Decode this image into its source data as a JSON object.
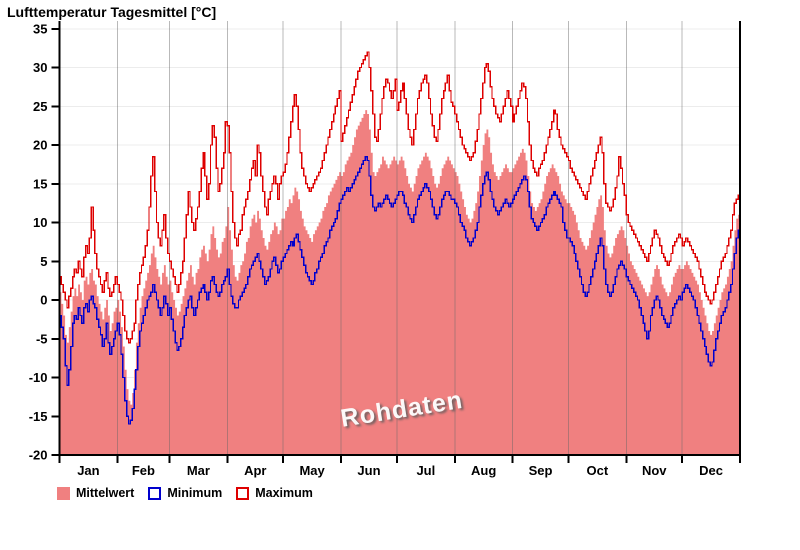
{
  "title": "Lufttemperatur Tagesmittel [°C]",
  "watermark": "Rohdaten",
  "colors": {
    "mean_fill": "#F08080",
    "min_line": "#0000CD",
    "max_line": "#DE0000",
    "h_grid": "#ECECEC",
    "month_grid_rgba": "rgba(100,100,100,0.45)",
    "axis": "#000000",
    "label": "#000000"
  },
  "legend": [
    {
      "label": "Mittelwert",
      "swatch": "filled",
      "color": "#F08080"
    },
    {
      "label": "Minimum",
      "swatch": "outline",
      "color": "#0000CD"
    },
    {
      "label": "Maximum",
      "swatch": "outline",
      "color": "#DE0000"
    }
  ],
  "chart_data": {
    "type": "area",
    "title": "Lufttemperatur Tagesmittel [°C]",
    "xlabel": "",
    "ylabel": "",
    "ylim": [
      -20,
      36
    ],
    "y_ticks": [
      35,
      30,
      25,
      20,
      15,
      10,
      5,
      0,
      -5,
      -10,
      -15,
      -20
    ],
    "grid": "on",
    "legend_position": "bottom",
    "months": [
      "Jan",
      "Feb",
      "Mar",
      "Apr",
      "May",
      "Jun",
      "Jul",
      "Aug",
      "Sep",
      "Oct",
      "Nov",
      "Dec"
    ],
    "days_per_month": [
      31,
      28,
      31,
      30,
      31,
      30,
      31,
      31,
      30,
      31,
      30,
      31
    ],
    "series": [
      {
        "name": "Mittelwert",
        "render": "area",
        "color": "#F08080",
        "values": [
          1,
          -0.5,
          -2,
          -4.5,
          -5.5,
          -3.5,
          -1.5,
          0.5,
          1.5,
          0.5,
          2,
          1,
          0,
          2.5,
          3,
          2,
          3.5,
          4,
          2.5,
          2,
          0.5,
          -0.5,
          -1.5,
          -2.5,
          -1,
          0,
          -2,
          -4,
          -3,
          -1.5,
          -1,
          0,
          -1.5,
          -3.5,
          -6,
          -9,
          -11.5,
          -13,
          -13.5,
          -12,
          -9,
          -5.5,
          -3,
          -1,
          0.5,
          1.5,
          2.5,
          3.5,
          4.5,
          6,
          7,
          5.5,
          4,
          3,
          2,
          3.5,
          4.5,
          3,
          2,
          2.5,
          1,
          0,
          -1,
          -2,
          -1.5,
          -0.5,
          0.5,
          1.5,
          2.5,
          3.5,
          4.5,
          3,
          2,
          3.5,
          4,
          5.5,
          6.5,
          7,
          6,
          5,
          6.5,
          8.5,
          9.5,
          8,
          6.5,
          5.5,
          6,
          7.5,
          8,
          9.5,
          12,
          9,
          6.5,
          4.5,
          3,
          2.5,
          3.5,
          4.5,
          5,
          6,
          7.5,
          8,
          9.5,
          10.5,
          11,
          10,
          11.5,
          10.5,
          9,
          8,
          7,
          6.5,
          7.5,
          8.5,
          9,
          10,
          9.5,
          8.5,
          9,
          10.5,
          10.5,
          11.5,
          12,
          13,
          12.5,
          13.5,
          14.5,
          14,
          13,
          11.5,
          10.5,
          9.5,
          9,
          8.5,
          8,
          7.5,
          8.5,
          9,
          9.5,
          10,
          10.5,
          11.5,
          12,
          12.5,
          13.5,
          14,
          14.5,
          15,
          15.5,
          16,
          16.5,
          16,
          16.5,
          17.5,
          18,
          18.5,
          19,
          20,
          21,
          22,
          22.5,
          23,
          23.5,
          24,
          24.5,
          24,
          22,
          19,
          16.5,
          16,
          16.5,
          17,
          17.5,
          18.5,
          18,
          17.5,
          17,
          17.5,
          18,
          18.5,
          18,
          17.5,
          18,
          18.5,
          18,
          17,
          16,
          15,
          14.5,
          14,
          15,
          16,
          17,
          17.5,
          18,
          18.5,
          19,
          18.5,
          18,
          17,
          16,
          15,
          14.5,
          15,
          16,
          17,
          17.5,
          18,
          18.5,
          18,
          17.5,
          17,
          16.5,
          16,
          15,
          14,
          13,
          12,
          11,
          10.5,
          10,
          10.5,
          11.5,
          12.5,
          14,
          16,
          18,
          20,
          21.5,
          22,
          21,
          19,
          17.5,
          16.5,
          16,
          15.5,
          16,
          16.5,
          17,
          17.5,
          17,
          16.5,
          16.5,
          17,
          17.5,
          18,
          18.5,
          19,
          19.5,
          19,
          18,
          16,
          14,
          12.5,
          12,
          11.5,
          12,
          12.5,
          13,
          14,
          15,
          16,
          16.5,
          17,
          17.5,
          17,
          16.5,
          16,
          15,
          14,
          13.5,
          13,
          12.5,
          12.5,
          12,
          11.5,
          11,
          10,
          9,
          8,
          7.5,
          7,
          6.5,
          7,
          8,
          9,
          10,
          11,
          12,
          13,
          13.5,
          12,
          9,
          7,
          6,
          5.5,
          6,
          7,
          8,
          8.5,
          9,
          9.5,
          9,
          8,
          7,
          6,
          5,
          4.5,
          4,
          3.5,
          3,
          2.5,
          2,
          1.5,
          1,
          0.5,
          1,
          2,
          3,
          4,
          4.5,
          4,
          3,
          2,
          1.5,
          1,
          0.5,
          1,
          2,
          3,
          3.5,
          4,
          4.5,
          4,
          4,
          4.5,
          5,
          4.5,
          4,
          3.5,
          3,
          2.5,
          2,
          1,
          0,
          -1,
          -2,
          -3,
          -4,
          -4.5,
          -4,
          -3,
          -2,
          -1,
          0,
          1,
          1.5,
          2,
          3,
          4,
          5,
          7,
          9,
          10.5,
          11
        ]
      },
      {
        "name": "Minimum",
        "render": "step-line",
        "color": "#0000CD",
        "values": [
          -2,
          -3.5,
          -5,
          -8.5,
          -11,
          -9,
          -6,
          -3,
          -2,
          -2.5,
          -1,
          -2,
          -3,
          -1,
          -0.5,
          -1.5,
          0,
          0.5,
          -0.5,
          -1,
          -2.5,
          -3.5,
          -4.5,
          -6,
          -5,
          -3,
          -5.5,
          -7,
          -6,
          -5,
          -4,
          -3,
          -4.5,
          -7,
          -10,
          -13,
          -15,
          -16,
          -15.5,
          -14,
          -11.5,
          -9,
          -6,
          -4,
          -3,
          -2,
          -1,
          0,
          0.5,
          1,
          2,
          1,
          0,
          -1,
          -2,
          -1,
          0.5,
          -0.5,
          -2,
          -1,
          -2.5,
          -4,
          -5.5,
          -6.5,
          -6,
          -5,
          -3.5,
          -2,
          -1,
          0,
          0.5,
          -1,
          -2,
          -1,
          0,
          1,
          1.5,
          2,
          1,
          0,
          1,
          2.5,
          3,
          2,
          1,
          0.5,
          1,
          2,
          2.5,
          3,
          4,
          2,
          0.5,
          -0.5,
          -1,
          -1,
          0,
          0.5,
          1,
          1.5,
          2,
          3,
          4,
          4.5,
          5,
          5.5,
          6,
          5,
          4,
          3,
          2,
          2.5,
          3,
          4,
          5,
          5.5,
          4.5,
          3.5,
          4,
          5,
          5.5,
          6,
          6.5,
          7,
          7.5,
          7,
          8,
          8.5,
          7.5,
          6.5,
          5.5,
          4.5,
          3.5,
          3,
          2.5,
          2,
          2.5,
          3.5,
          4,
          5,
          5.5,
          6,
          7,
          7.5,
          8,
          9,
          9.5,
          10,
          10.5,
          11.5,
          12.5,
          13,
          13.5,
          14,
          14.5,
          14,
          14.5,
          15,
          15.5,
          16,
          16.5,
          17,
          17.5,
          18,
          18.5,
          18,
          16,
          13.5,
          12,
          11.5,
          12,
          12.5,
          12,
          12.5,
          13,
          13.5,
          13,
          12.5,
          12,
          12.5,
          13,
          13.5,
          14,
          14,
          13.5,
          12.5,
          12,
          11,
          10.5,
          10,
          11,
          12,
          13,
          13.5,
          14,
          14.5,
          15,
          14.5,
          14,
          13,
          12,
          11,
          10.5,
          11,
          12,
          13,
          13.5,
          14,
          14,
          13.5,
          13,
          13,
          12.5,
          12,
          11,
          10,
          9.5,
          9,
          8,
          7.5,
          7,
          7.5,
          8,
          9,
          10,
          12,
          13.5,
          15,
          16,
          16.5,
          15.5,
          14,
          13,
          12,
          11.5,
          11,
          11.5,
          12,
          12.5,
          13,
          12.5,
          12,
          12.5,
          13,
          13.5,
          14,
          14.5,
          15,
          15.5,
          16,
          15.5,
          14,
          12,
          10.5,
          10,
          9.5,
          9,
          9.5,
          10,
          10.5,
          11,
          12,
          12.5,
          13,
          13.5,
          14,
          13.5,
          13,
          12.5,
          12,
          10,
          9,
          8,
          8,
          7.5,
          7,
          6,
          5,
          4,
          3,
          2,
          1,
          0.5,
          1,
          2,
          3,
          4,
          5,
          6,
          7,
          8,
          7,
          4,
          2,
          1,
          0.5,
          1,
          2,
          3,
          4,
          4.5,
          5,
          4.5,
          4,
          3,
          2.5,
          2,
          1.5,
          1,
          0.5,
          0,
          -1,
          -2,
          -3,
          -4,
          -5,
          -4,
          -2,
          -1,
          0,
          0.5,
          0,
          -1,
          -2,
          -2.5,
          -3,
          -3.5,
          -3,
          -2,
          -1,
          -0.5,
          0,
          0.5,
          0,
          1,
          1.5,
          2,
          1.5,
          1,
          0.5,
          0,
          -1,
          -2,
          -3,
          -4,
          -5,
          -6,
          -7,
          -8,
          -8.5,
          -8,
          -6.5,
          -5,
          -4,
          -3,
          -2,
          -1.5,
          -1,
          0,
          1,
          2,
          4,
          6,
          8,
          9
        ]
      },
      {
        "name": "Maximum",
        "render": "step-line",
        "color": "#DE0000",
        "values": [
          3,
          2,
          1,
          0,
          -1,
          0.5,
          1.5,
          3,
          4,
          3.5,
          5,
          4,
          3,
          5.5,
          7,
          6,
          8,
          12,
          9,
          6,
          4,
          3,
          2,
          1,
          2.5,
          3.5,
          1.5,
          0.5,
          1,
          2,
          3,
          2,
          1,
          0,
          -2,
          -4,
          -5,
          -5.5,
          -5,
          -4,
          -3,
          0,
          2,
          3.5,
          4.5,
          5.5,
          7,
          9,
          12,
          16,
          18.5,
          14,
          10,
          8,
          7,
          9,
          11,
          8,
          6,
          5,
          4,
          3,
          2,
          1,
          2,
          3.5,
          5,
          8,
          11,
          14,
          12,
          10,
          9,
          10.5,
          12,
          14,
          17,
          19,
          16,
          13,
          15,
          20,
          22.5,
          21,
          17,
          14,
          15,
          17,
          19,
          23,
          22.5,
          19,
          14,
          10,
          8,
          7,
          8.5,
          9,
          11,
          12,
          13,
          14,
          15.5,
          17,
          18,
          16,
          20,
          19,
          16,
          14,
          12,
          11,
          13,
          14,
          15,
          16,
          15,
          13,
          15,
          16,
          16.5,
          17.5,
          19,
          21,
          23,
          25,
          26.5,
          25,
          22,
          19,
          17,
          16,
          15,
          14.5,
          14,
          14.5,
          15,
          15.5,
          16,
          16.5,
          17,
          18,
          19,
          20,
          21,
          22,
          23,
          24,
          25,
          26,
          27,
          20.5,
          21.5,
          22.5,
          23.5,
          24.5,
          25.5,
          26.5,
          27.5,
          28.5,
          29.5,
          30,
          30.5,
          31,
          31.5,
          32,
          30,
          27,
          24,
          21,
          20.5,
          22,
          24,
          26,
          27.5,
          28.5,
          28,
          27,
          26,
          27,
          28.5,
          24.5,
          25.5,
          27,
          28,
          26,
          24,
          22,
          21,
          20,
          22,
          24,
          26,
          27,
          28,
          28.5,
          29,
          28,
          26,
          24,
          22.5,
          21,
          20.5,
          22,
          24,
          26,
          27,
          28,
          29,
          27,
          25.5,
          25,
          24,
          23,
          22,
          21,
          20,
          19.5,
          19,
          18.5,
          18,
          18.5,
          19,
          20.5,
          22,
          24,
          26,
          28,
          30,
          30.5,
          29.5,
          27.5,
          26,
          25,
          24,
          23.5,
          23,
          24,
          25,
          26,
          27,
          26,
          25,
          23,
          24,
          25,
          26,
          27,
          28,
          27.5,
          26,
          23,
          20,
          18,
          17,
          16.5,
          16,
          17,
          17.5,
          18,
          19,
          20,
          21,
          22,
          23,
          24.5,
          24,
          22,
          21,
          20,
          19.5,
          19,
          18.5,
          18,
          17,
          16.5,
          16,
          15.5,
          15,
          14.5,
          14,
          13.5,
          13,
          14,
          15,
          16,
          17,
          18,
          19,
          20,
          21,
          19,
          15,
          12.5,
          12,
          11.5,
          12,
          13,
          14.5,
          16,
          18.5,
          17,
          15,
          13.5,
          11,
          10,
          9.5,
          9,
          8.5,
          8,
          7.5,
          7,
          6.5,
          6,
          5.5,
          5,
          6,
          7,
          8,
          9,
          8.5,
          8,
          7,
          6,
          5.5,
          5,
          4.5,
          5,
          6,
          7,
          7.5,
          8,
          8.5,
          8,
          7,
          7.5,
          8,
          7.5,
          7,
          6.5,
          6,
          5.5,
          5,
          4,
          3,
          2,
          1,
          0.5,
          0,
          -0.5,
          0,
          1,
          2,
          3,
          4,
          5,
          5.5,
          6,
          7,
          8,
          9,
          11,
          12.5,
          13,
          13.5
        ]
      }
    ]
  }
}
